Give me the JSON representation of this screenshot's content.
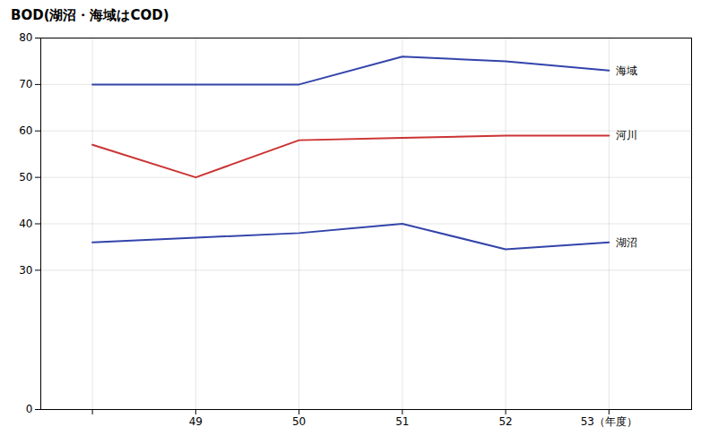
{
  "chart_data": {
    "type": "line",
    "title": "BOD(湖沼・海域はCOD)",
    "x": [
      48,
      49,
      50,
      51,
      52,
      53
    ],
    "series": [
      {
        "name": "海域",
        "color": "#3344aa",
        "values": [
          70.0,
          70.0,
          70.0,
          76.0,
          75.0,
          73.0
        ]
      },
      {
        "name": "河川",
        "color": "#cc3333",
        "values": [
          57.0,
          50.0,
          58.0,
          58.5,
          59.0,
          59.0
        ]
      },
      {
        "name": "湖沼",
        "color": "#3344aa",
        "values": [
          36.0,
          37.0,
          38.0,
          40.0,
          34.5,
          36.0
        ]
      }
    ],
    "xlim": [
      47.5,
      53.8
    ],
    "xticks": [
      {
        "value": 48,
        "label": ""
      },
      {
        "value": 49,
        "label": "49"
      },
      {
        "value": 50,
        "label": "50"
      },
      {
        "value": 51,
        "label": "51"
      },
      {
        "value": 52,
        "label": "52"
      },
      {
        "value": 53,
        "label": "53（年度）"
      }
    ],
    "ylim": [
      0,
      80
    ],
    "yticks": [
      0,
      30,
      40,
      50,
      60,
      70,
      80
    ],
    "grid": true
  }
}
